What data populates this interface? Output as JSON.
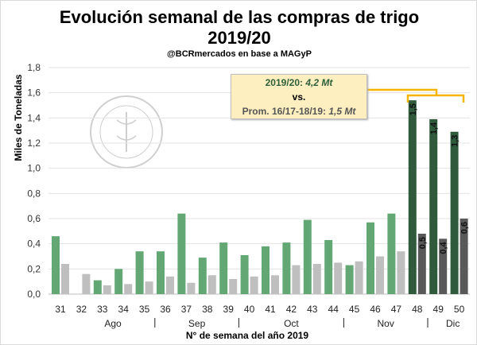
{
  "chart_data": {
    "type": "bar",
    "title": "Evolución semanal de las compras de trigo",
    "title_line2": "2019/20",
    "subtitle": "@BCRmercados en base a MAGyP",
    "xlabel": "N° de semana del año 2019",
    "ylabel": "Miles de Toneladas",
    "ylim": [
      0,
      1.8
    ],
    "yticks": [
      "0,0",
      "0,2",
      "0,4",
      "0,6",
      "0,8",
      "1,0",
      "1,2",
      "1,4",
      "1,6",
      "1,8"
    ],
    "grid": true,
    "categories": [
      "31",
      "32",
      "33",
      "34",
      "35",
      "36",
      "37",
      "38",
      "39",
      "40",
      "41",
      "42",
      "43",
      "44",
      "45",
      "46",
      "47",
      "48",
      "49",
      "50"
    ],
    "months": [
      {
        "label": "Ago",
        "after": 33.5
      },
      {
        "label": "Sep",
        "after": 37.5
      },
      {
        "label": "Oct",
        "after": 42
      },
      {
        "label": "Nov",
        "after": 46.5
      },
      {
        "label": "Dic",
        "after": 49.7
      }
    ],
    "month_separators": [
      35.5,
      39.5,
      44.5,
      48.5
    ],
    "series": [
      {
        "name": "2019/20",
        "color": "#63a775",
        "highlight_color": "#2f5b3c",
        "values": [
          0.46,
          0,
          0.11,
          0.2,
          0.34,
          0.34,
          0.64,
          0.29,
          0.41,
          0.31,
          0.38,
          0.41,
          0.59,
          0.43,
          0.23,
          0.57,
          0.64,
          1.54,
          1.39,
          1.29
        ]
      },
      {
        "name": "Prom. 16/17-18/19",
        "color": "#bfbfbf",
        "highlight_color": "#595959",
        "values": [
          0.24,
          0.16,
          0.07,
          0.08,
          0.1,
          0.14,
          0.09,
          0.15,
          0.12,
          0.14,
          0.15,
          0.23,
          0.24,
          0.25,
          0.26,
          0.3,
          0.34,
          0.48,
          0.44,
          0.6
        ]
      }
    ],
    "highlight_from_index": 17,
    "data_labels": {
      "2019/20": [
        "1,5",
        "1,4",
        "1,3"
      ],
      "Prom. 16/17-18/19": [
        "0,5",
        "0,4",
        "0,6"
      ]
    },
    "annotation": {
      "line1_label": "2019/20:",
      "line1_value": "4,2 Mt",
      "line2": "vs.",
      "line3_label": "Prom. 16/17-18/19:",
      "line3_value": "1,5 Mt"
    },
    "bracket_color": "#f5b400"
  },
  "watermark": "BOLSA DE COMERCIO DE ROSARIO"
}
